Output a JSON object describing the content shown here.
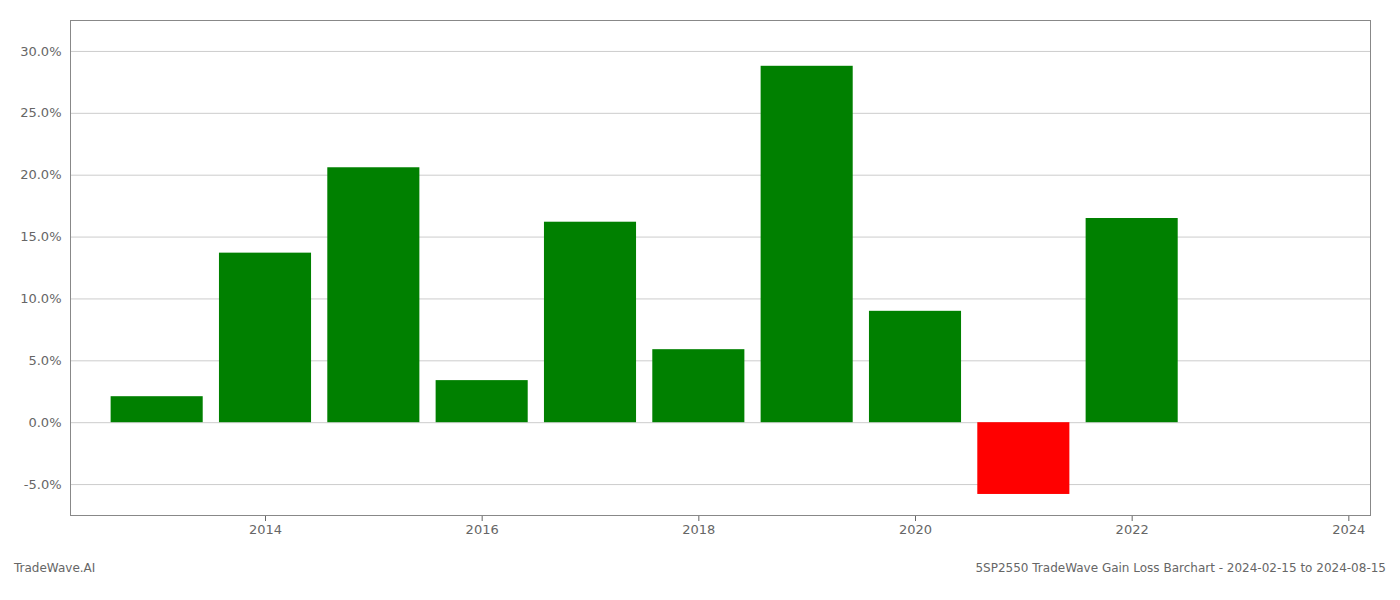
{
  "chart_data": {
    "type": "bar",
    "x": [
      2013,
      2014,
      2015,
      2016,
      2017,
      2018,
      2019,
      2020,
      2021,
      2022
    ],
    "values": [
      0.021,
      0.137,
      0.206,
      0.034,
      0.162,
      0.059,
      0.288,
      0.09,
      -0.058,
      0.165
    ],
    "colors": [
      "#008000",
      "#008000",
      "#008000",
      "#008000",
      "#008000",
      "#008000",
      "#008000",
      "#008000",
      "#ff0000",
      "#008000"
    ],
    "xlim": [
      2012.2,
      2024.2
    ],
    "xticks": [
      2014,
      2016,
      2018,
      2020,
      2022,
      2024
    ],
    "ylim": [
      -0.075,
      0.325
    ],
    "yticks": [
      {
        "value": -0.05,
        "label": "-5.0%"
      },
      {
        "value": 0.0,
        "label": "0.0%"
      },
      {
        "value": 0.05,
        "label": "5.0%"
      },
      {
        "value": 0.1,
        "label": "10.0%"
      },
      {
        "value": 0.15,
        "label": "15.0%"
      },
      {
        "value": 0.2,
        "label": "20.0%"
      },
      {
        "value": 0.25,
        "label": "25.0%"
      },
      {
        "value": 0.3,
        "label": "30.0%"
      }
    ],
    "grid": true,
    "annotations": [
      "TradeWave.AI",
      "5SP2550 TradeWave Gain Loss Barchart - 2024-02-15 to 2024-08-15"
    ]
  }
}
